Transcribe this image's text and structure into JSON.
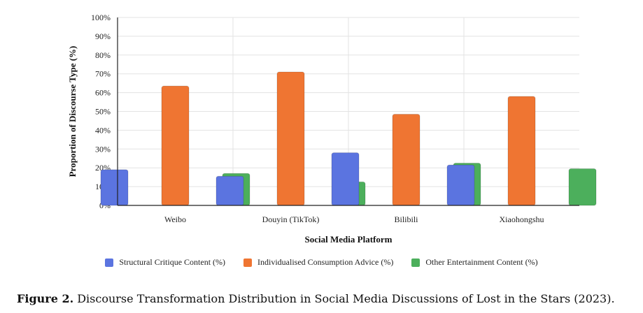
{
  "chart_data": {
    "type": "bar",
    "categories": [
      "Weibo",
      "Douyin (TikTok)",
      "Bilibili",
      "Xiaohongshu"
    ],
    "series": [
      {
        "name": "Structural Critique Content (%)",
        "color": "#5b74e0",
        "values": [
          19,
          15.5,
          28,
          21.5
        ]
      },
      {
        "name": "Individualised Consumption Advice (%)",
        "color": "#ef7532",
        "values": [
          63.5,
          71,
          48.5,
          58
        ]
      },
      {
        "name": "Other Entertainment Content (%)",
        "color": "#4caf5c",
        "values": [
          17,
          12.5,
          22.5,
          19.5
        ]
      }
    ],
    "xlabel": "Social Media Platform",
    "ylabel": "Proportion of Discourse Type (%)",
    "ylim": [
      0,
      100
    ],
    "yticks": [
      "0%",
      "10%",
      "20%",
      "30%",
      "40%",
      "50%",
      "60%",
      "70%",
      "80%",
      "90%",
      "100%"
    ],
    "grid": true,
    "legend_position": "bottom"
  },
  "caption": {
    "label": "Figure 2.",
    "text": " Discourse Transformation Distribution in Social Media Discussions of Lost in the Stars (2023)."
  }
}
